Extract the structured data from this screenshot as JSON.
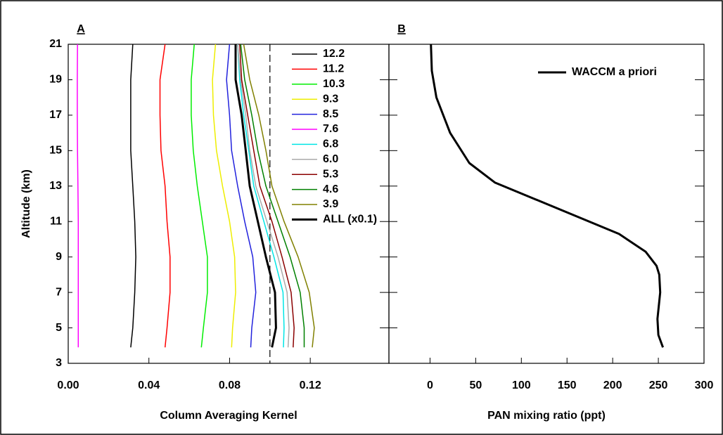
{
  "chart_data": [
    {
      "type": "line",
      "label": "A",
      "xlabel": "Column Averaging Kernel",
      "ylabel": "Altitude (km)",
      "xlim": [
        0,
        0.159
      ],
      "xticks": [
        {
          "value": 0,
          "label": "0.00"
        },
        0.04,
        0.08,
        0.12
      ],
      "ylim": [
        3,
        21
      ],
      "yticks": [
        3,
        5,
        7,
        9,
        11,
        13,
        15,
        17,
        19,
        21
      ],
      "ref_line": 0.1,
      "legend": "upper right",
      "y": [
        3.9,
        5,
        7,
        9,
        11,
        13,
        15,
        17,
        19,
        21
      ],
      "series": [
        {
          "name": "12.2",
          "color": "#000000",
          "values": [
            0.031,
            0.032,
            0.033,
            0.0335,
            0.033,
            0.032,
            0.031,
            0.031,
            0.031,
            0.032
          ]
        },
        {
          "name": "11.2",
          "color": "#ff0000",
          "values": [
            0.048,
            0.049,
            0.0505,
            0.0505,
            0.049,
            0.048,
            0.046,
            0.0455,
            0.0455,
            0.048
          ]
        },
        {
          "name": "10.3",
          "color": "#00ee00",
          "values": [
            0.066,
            0.067,
            0.069,
            0.069,
            0.0665,
            0.064,
            0.062,
            0.061,
            0.061,
            0.0625
          ]
        },
        {
          "name": "9.3",
          "color": "#eeee00",
          "values": [
            0.081,
            0.0815,
            0.083,
            0.0825,
            0.08,
            0.0765,
            0.0735,
            0.072,
            0.0715,
            0.073
          ]
        },
        {
          "name": "8.5",
          "color": "#2222dd",
          "values": [
            0.0905,
            0.091,
            0.093,
            0.0915,
            0.0875,
            0.084,
            0.081,
            0.08,
            0.0785,
            0.08
          ]
        },
        {
          "name": "7.6",
          "color": "#ff00ff",
          "values": [
            0.005,
            0.005,
            0.005,
            0.005,
            0.005,
            0.0048,
            0.0046,
            0.0045,
            0.0045,
            0.0046
          ]
        },
        {
          "name": "6.8",
          "color": "#00e5e5",
          "values": [
            0.1067,
            0.107,
            0.1065,
            0.102,
            0.097,
            0.092,
            0.0895,
            0.087,
            0.085,
            0.084
          ]
        },
        {
          "name": "6.0",
          "color": "#aaaaaa",
          "values": [
            0.109,
            0.1095,
            0.1085,
            0.104,
            0.0985,
            0.093,
            0.09,
            0.088,
            0.0855,
            0.084
          ]
        },
        {
          "name": "5.3",
          "color": "#8b0000",
          "values": [
            0.1115,
            0.112,
            0.1105,
            0.106,
            0.101,
            0.095,
            0.092,
            0.089,
            0.086,
            0.085
          ]
        },
        {
          "name": "4.6",
          "color": "#008000",
          "values": [
            0.117,
            0.117,
            0.115,
            0.11,
            0.104,
            0.098,
            0.094,
            0.091,
            0.0875,
            0.0855
          ]
        },
        {
          "name": "3.9",
          "color": "#808000",
          "values": [
            0.121,
            0.122,
            0.1195,
            0.114,
            0.107,
            0.101,
            0.098,
            0.0945,
            0.09,
            0.087
          ]
        },
        {
          "name": "ALL (x0.1)",
          "color": "#000000",
          "width": 3,
          "values": [
            0.101,
            0.103,
            0.1025,
            0.098,
            0.094,
            0.09,
            0.088,
            0.086,
            0.083,
            0.083
          ]
        }
      ]
    },
    {
      "type": "line",
      "label": "B",
      "xlabel": "PAN mixing ratio (ppt)",
      "xlim": [
        -45,
        300
      ],
      "xticks": [
        0,
        50,
        100,
        150,
        200,
        250,
        300
      ],
      "ylim": [
        3,
        21
      ],
      "legend": "upper right",
      "y": [
        3.9,
        4.6,
        5.5,
        7,
        8,
        8.5,
        9.3,
        10.3,
        13.2,
        14.3,
        16,
        18,
        19.5,
        21
      ],
      "series": [
        {
          "name": "WACCM a priori",
          "color": "#000000",
          "width": 3,
          "values": [
            255,
            250,
            249,
            252,
            251,
            248,
            236,
            207,
            71,
            43,
            22,
            7,
            2,
            1
          ]
        }
      ]
    }
  ]
}
